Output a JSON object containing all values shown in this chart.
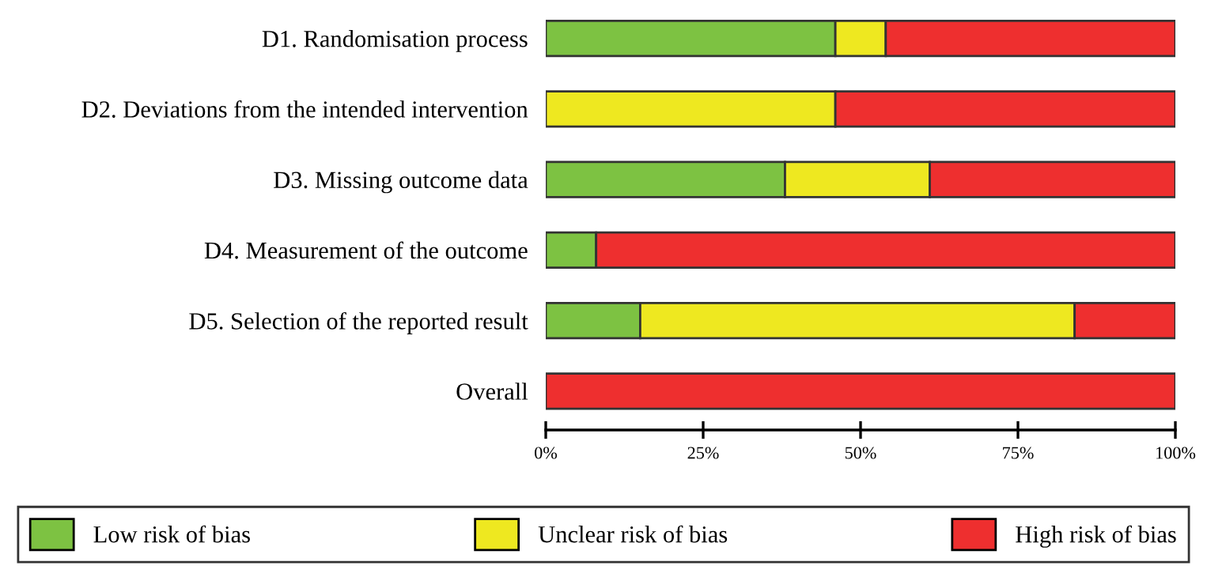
{
  "chart_data": {
    "type": "bar",
    "orientation": "horizontal",
    "stacked": true,
    "categories": [
      "D1. Randomisation process",
      "D2. Deviations from the intended intervention",
      "D3. Missing outcome data",
      "D4. Measurement of the outcome",
      "D5. Selection of the reported result",
      "Overall"
    ],
    "series": [
      {
        "name": "Low risk of bias",
        "color": "#7dc242",
        "values": [
          46,
          0,
          38,
          8,
          15,
          0
        ]
      },
      {
        "name": "Unclear risk of bias",
        "color": "#eee820",
        "values": [
          8,
          46,
          23,
          0,
          69,
          0
        ]
      },
      {
        "name": "High risk of bias",
        "color": "#ee2f2f",
        "values": [
          46,
          54,
          39,
          92,
          16,
          100
        ]
      }
    ],
    "xlim": [
      0,
      100
    ],
    "xticks": [
      {
        "value": 0,
        "label": "0%"
      },
      {
        "value": 25,
        "label": "25%"
      },
      {
        "value": 50,
        "label": "50%"
      },
      {
        "value": 75,
        "label": "75%"
      },
      {
        "value": 100,
        "label": "100%"
      }
    ],
    "grid": false,
    "legend": "bottom"
  }
}
